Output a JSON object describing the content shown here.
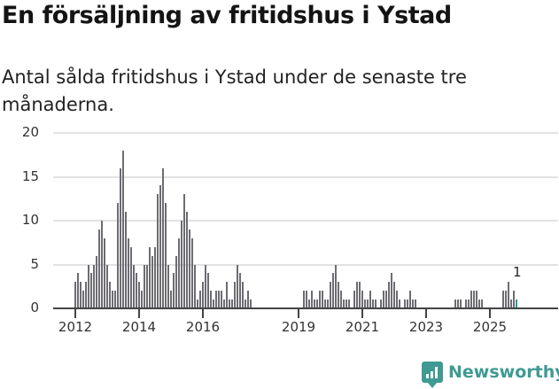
{
  "header": {
    "title": "En försäljning av fritidshus i Ystad",
    "subtitle": "Antal sålda fritidshus i Ystad under de senaste tre månaderna."
  },
  "brand": {
    "name": "Newsworthy",
    "color": "#3f9a93"
  },
  "chart_data": {
    "type": "bar",
    "title": "En försäljning av fritidshus i Ystad",
    "subtitle": "Antal sålda fritidshus i Ystad under de senaste tre månaderna.",
    "xlabel": "",
    "ylabel": "",
    "ylim": [
      0,
      20
    ],
    "yticks": [
      "0",
      "5",
      "10",
      "15",
      "20"
    ],
    "xticks": [
      "2012",
      "2014",
      "2016",
      "2019",
      "2021",
      "2023",
      "2025"
    ],
    "grid": true,
    "bar_color": "#6e6c72",
    "highlight_color": "#2a9a94",
    "annotation": {
      "label": "1",
      "target": "last bar"
    },
    "start": "2012-01",
    "frequency": "monthly",
    "values": [
      3,
      4,
      3,
      2,
      3,
      5,
      4,
      5,
      6,
      9,
      10,
      8,
      5,
      3,
      2,
      2,
      12,
      16,
      18,
      11,
      8,
      7,
      5,
      4,
      3,
      2,
      5,
      5,
      7,
      6,
      7,
      13,
      14,
      16,
      12,
      5,
      2,
      4,
      6,
      8,
      10,
      13,
      11,
      9,
      8,
      5,
      1,
      2,
      3,
      5,
      4,
      2,
      1,
      2,
      2,
      2,
      1,
      3,
      1,
      1,
      3,
      5,
      4,
      3,
      1,
      2,
      1,
      null,
      null,
      null,
      null,
      null,
      null,
      null,
      null,
      null,
      null,
      null,
      null,
      null,
      null,
      null,
      null,
      null,
      null,
      null,
      2,
      2,
      1,
      2,
      1,
      1,
      2,
      2,
      1,
      1,
      3,
      4,
      5,
      3,
      2,
      1,
      1,
      1,
      null,
      2,
      3,
      3,
      2,
      1,
      1,
      2,
      1,
      1,
      null,
      1,
      2,
      2,
      3,
      4,
      3,
      2,
      1,
      null,
      1,
      1,
      2,
      1,
      1,
      null,
      null,
      null,
      null,
      null,
      null,
      null,
      null,
      null,
      null,
      null,
      null,
      null,
      null,
      1,
      1,
      1,
      null,
      1,
      1,
      2,
      2,
      2,
      1,
      1,
      null,
      null,
      null,
      null,
      null,
      null,
      null,
      2,
      2,
      3,
      1,
      2,
      1
    ],
    "last_value": 1
  }
}
